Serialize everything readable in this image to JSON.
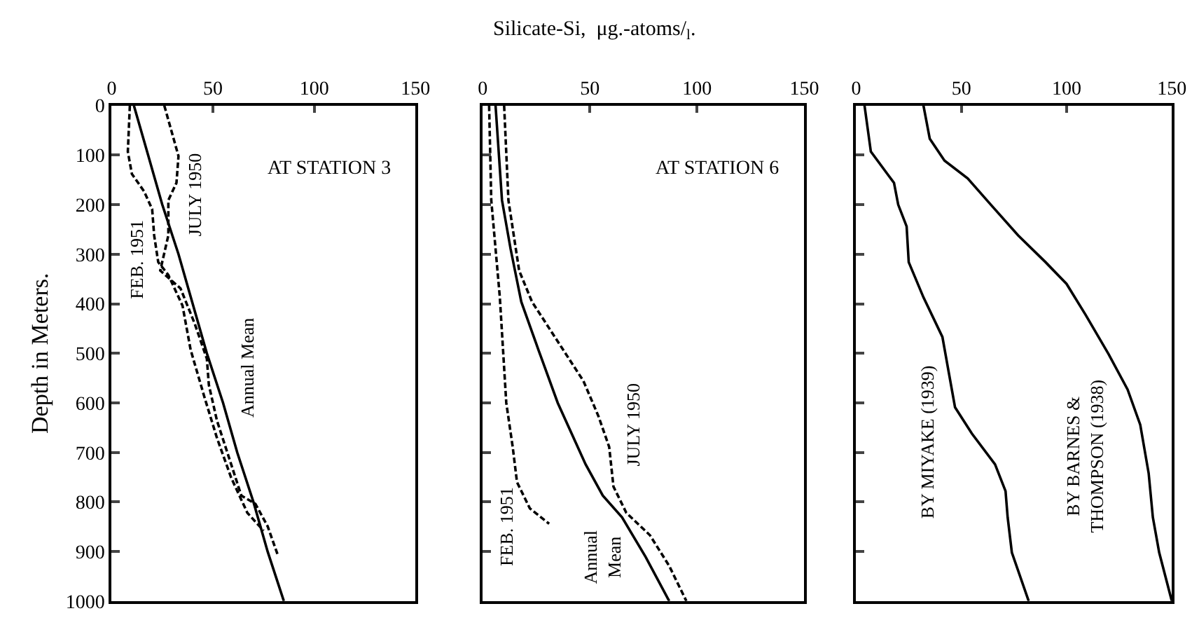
{
  "chart_data": [
    {
      "type": "line",
      "ylabel": "Depth in Meters.",
      "annotations": [
        "AT STATION 3"
      ],
      "xlim": [
        0,
        150
      ],
      "xticks": [
        0,
        50,
        100,
        150
      ],
      "ylim": [
        1000,
        0
      ],
      "yticks": [
        0,
        100,
        200,
        300,
        400,
        500,
        600,
        700,
        800,
        900,
        1000
      ],
      "marker": "none",
      "series": [
        {
          "name": "FEB. 1951",
          "color": "#000000",
          "line_style": "dashed",
          "x": [
            9,
            8,
            10,
            16,
            20,
            21,
            23,
            28,
            35,
            39,
            46,
            52,
            59,
            67,
            75
          ],
          "values": [
            0,
            93,
            138,
            173,
            209,
            262,
            316,
            342,
            404,
            493,
            591,
            671,
            751,
            822,
            858
          ]
        },
        {
          "name": "JULY 1950",
          "color": "#000000",
          "line_style": "dashed",
          "x": [
            26,
            33,
            32,
            28,
            28,
            24,
            34,
            41,
            47,
            48,
            52,
            59,
            64,
            71,
            77,
            82
          ],
          "values": [
            0,
            102,
            156,
            191,
            262,
            333,
            369,
            440,
            511,
            564,
            636,
            724,
            787,
            804,
            849,
            907
          ]
        },
        {
          "name": "Annual Mean",
          "color": "#000000",
          "line_style": "solid",
          "x": [
            11,
            18,
            25,
            33,
            40,
            47,
            55,
            62,
            70,
            77,
            85
          ],
          "values": [
            0,
            100,
            200,
            300,
            400,
            500,
            600,
            700,
            800,
            900,
            1000
          ]
        }
      ]
    },
    {
      "type": "line",
      "xlabel": "Silicate-Si,  μg.-atoms/$_{l}$.",
      "annotations": [
        "AT STATION 6"
      ],
      "xlim": [
        0,
        150
      ],
      "xticks": [
        0,
        50,
        100,
        150
      ],
      "ylim": [
        1000,
        0
      ],
      "yticks": [
        {
          "value": 0,
          "label": null
        },
        {
          "value": 100,
          "label": null
        },
        {
          "value": 200,
          "label": null
        },
        {
          "value": 300,
          "label": null
        },
        {
          "value": 400,
          "label": null
        },
        {
          "value": 500,
          "label": null
        },
        {
          "value": 600,
          "label": null
        },
        {
          "value": 700,
          "label": null
        },
        {
          "value": 800,
          "label": null
        },
        {
          "value": 900,
          "label": null
        },
        {
          "value": 1000,
          "label": null
        }
      ],
      "tick_labels": "x",
      "marker": "none",
      "series": [
        {
          "name": "FEB. 1951",
          "color": "#000000",
          "line_style": "dashed",
          "x": [
            3,
            4,
            8,
            11,
            14,
            16,
            22,
            31
          ],
          "values": [
            0,
            191,
            387,
            600,
            689,
            760,
            813,
            844
          ]
        },
        {
          "name": "Annual Mean",
          "color": "#000000",
          "line_style": "solid",
          "x": [
            6,
            9,
            13,
            18,
            26,
            35,
            42,
            48,
            56,
            65,
            76,
            87
          ],
          "values": [
            0,
            191,
            289,
            396,
            493,
            600,
            667,
            724,
            787,
            831,
            911,
            1000
          ]
        },
        {
          "name": "JULY 1950",
          "color": "#000000",
          "line_style": "dashed",
          "x": [
            10,
            12,
            17,
            23,
            35,
            47,
            54,
            59,
            61,
            67,
            78,
            87,
            95
          ],
          "values": [
            0,
            191,
            333,
            396,
            476,
            556,
            627,
            689,
            769,
            822,
            867,
            929,
            1000
          ]
        }
      ]
    },
    {
      "type": "line",
      "xlim": [
        0,
        150
      ],
      "xticks": [
        0,
        50,
        100,
        150
      ],
      "ylim": [
        1000,
        0
      ],
      "yticks": [
        {
          "value": 0,
          "label": null
        },
        {
          "value": 100,
          "label": null
        },
        {
          "value": 200,
          "label": null
        },
        {
          "value": 300,
          "label": null
        },
        {
          "value": 400,
          "label": null
        },
        {
          "value": 500,
          "label": null
        },
        {
          "value": 600,
          "label": null
        },
        {
          "value": 700,
          "label": null
        },
        {
          "value": 800,
          "label": null
        },
        {
          "value": 900,
          "label": null
        },
        {
          "value": 1000,
          "label": null
        }
      ],
      "tick_labels": "x",
      "marker": "none",
      "series": [
        {
          "name": "BY MIYAKE (1939)",
          "color": "#000000",
          "line_style": "solid",
          "x": [
            4,
            7,
            18,
            20,
            24,
            25,
            32,
            41,
            44,
            47,
            55,
            66,
            71,
            72,
            74,
            82
          ],
          "values": [
            0,
            93,
            156,
            200,
            244,
            316,
            387,
            467,
            538,
            609,
            662,
            724,
            778,
            831,
            902,
            1000
          ]
        },
        {
          "name": "BY BARNES & THOMPSON (1938)",
          "color": "#000000",
          "line_style": "solid",
          "x": [
            32,
            35,
            42,
            53,
            64,
            77,
            90,
            100,
            109,
            120,
            129,
            135,
            139,
            141,
            144,
            150
          ],
          "values": [
            0,
            67,
            111,
            147,
            200,
            262,
            316,
            360,
            422,
            502,
            573,
            644,
            742,
            831,
            902,
            1000
          ]
        }
      ]
    }
  ]
}
